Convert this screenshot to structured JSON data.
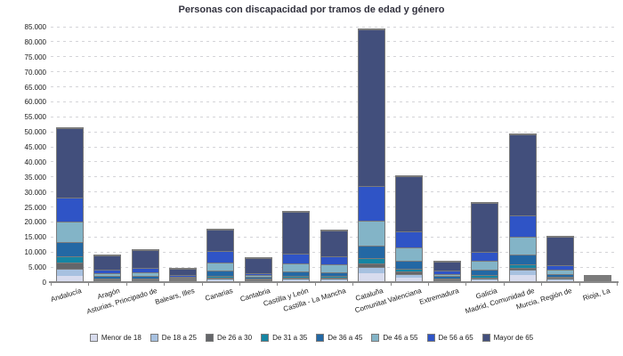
{
  "title": "Personas con discapacidad por tramos de edad y género",
  "chart_data": {
    "type": "bar",
    "stacked": true,
    "title": "Personas con discapacidad por tramos de edad y género",
    "xlabel": "",
    "ylabel": "",
    "ylim": [
      0,
      85000
    ],
    "ytick_step": 5000,
    "ytick_labels": [
      "0",
      "5.000",
      "10.000",
      "15.000",
      "20.000",
      "25.000",
      "30.000",
      "35.000",
      "40.000",
      "45.000",
      "50.000",
      "55.000",
      "60.000",
      "65.000",
      "70.000",
      "75.000",
      "80.000",
      "85.000"
    ],
    "grid": "horizontal-dashed",
    "legend_position": "bottom",
    "categories": [
      "Andalucía",
      "Aragón",
      "Asturias, Principado de",
      "Balears, Illes",
      "Canarias",
      "Cantabria",
      "Castilla y León",
      "Castilla - La Mancha",
      "Cataluña",
      "Comunitat Valenciana",
      "Extremadura",
      "Galicia",
      "Madrid, Comunidad de",
      "Murcia, Región de",
      "Rioja, La"
    ],
    "series": [
      {
        "name": "Menor de 18",
        "color": "#d8dcee",
        "values": [
          2200,
          250,
          200,
          150,
          650,
          150,
          600,
          600,
          3000,
          1400,
          250,
          600,
          2300,
          600,
          100
        ]
      },
      {
        "name": "De 18 a 25",
        "color": "#a7c1e0",
        "values": [
          2300,
          250,
          200,
          150,
          650,
          150,
          600,
          600,
          2000,
          1200,
          250,
          600,
          1700,
          500,
          100
        ]
      },
      {
        "name": "De 26 a 30",
        "color": "#64666a",
        "values": [
          2000,
          150,
          150,
          100,
          400,
          100,
          400,
          300,
          1300,
          800,
          150,
          200,
          700,
          300,
          50
        ]
      },
      {
        "name": "De 31 a 35",
        "color": "#1585a3",
        "values": [
          2000,
          250,
          250,
          150,
          650,
          150,
          600,
          600,
          1700,
          900,
          250,
          800,
          1300,
          400,
          80
        ]
      },
      {
        "name": "De 36 a 45",
        "color": "#2368a4",
        "values": [
          4800,
          800,
          800,
          400,
          1700,
          600,
          1400,
          1200,
          4200,
          2700,
          800,
          1800,
          3300,
          1000,
          170
        ]
      },
      {
        "name": "De 46 a 55",
        "color": "#83b4c7",
        "values": [
          6700,
          1200,
          1400,
          550,
          2700,
          650,
          2600,
          2600,
          8200,
          4600,
          1000,
          3000,
          6000,
          1400,
          250
        ]
      },
      {
        "name": "De 56 a 65",
        "color": "#2f54c6",
        "values": [
          8400,
          1100,
          1500,
          500,
          3800,
          1000,
          3400,
          2800,
          11800,
          5400,
          1200,
          3200,
          7000,
          1600,
          350
        ]
      },
      {
        "name": "Mayor de 65",
        "color": "#424f7c",
        "values": [
          23100,
          5300,
          6400,
          2750,
          7250,
          5500,
          14000,
          8800,
          52300,
          18600,
          3200,
          16600,
          27100,
          9600,
          1400
        ]
      }
    ],
    "totals": [
      51500,
      9300,
      10900,
      4750,
      17800,
      8300,
      23600,
      17500,
      84500,
      35600,
      7100,
      26800,
      49400,
      15400,
      2500
    ]
  },
  "colors": {
    "background": "#ffffff",
    "grid": "#d4d4d8",
    "axis": "#8a8a8a",
    "bar_border": "#7b7b7b",
    "title_text": "#32323e",
    "tick_text": "#1a1a1a"
  }
}
